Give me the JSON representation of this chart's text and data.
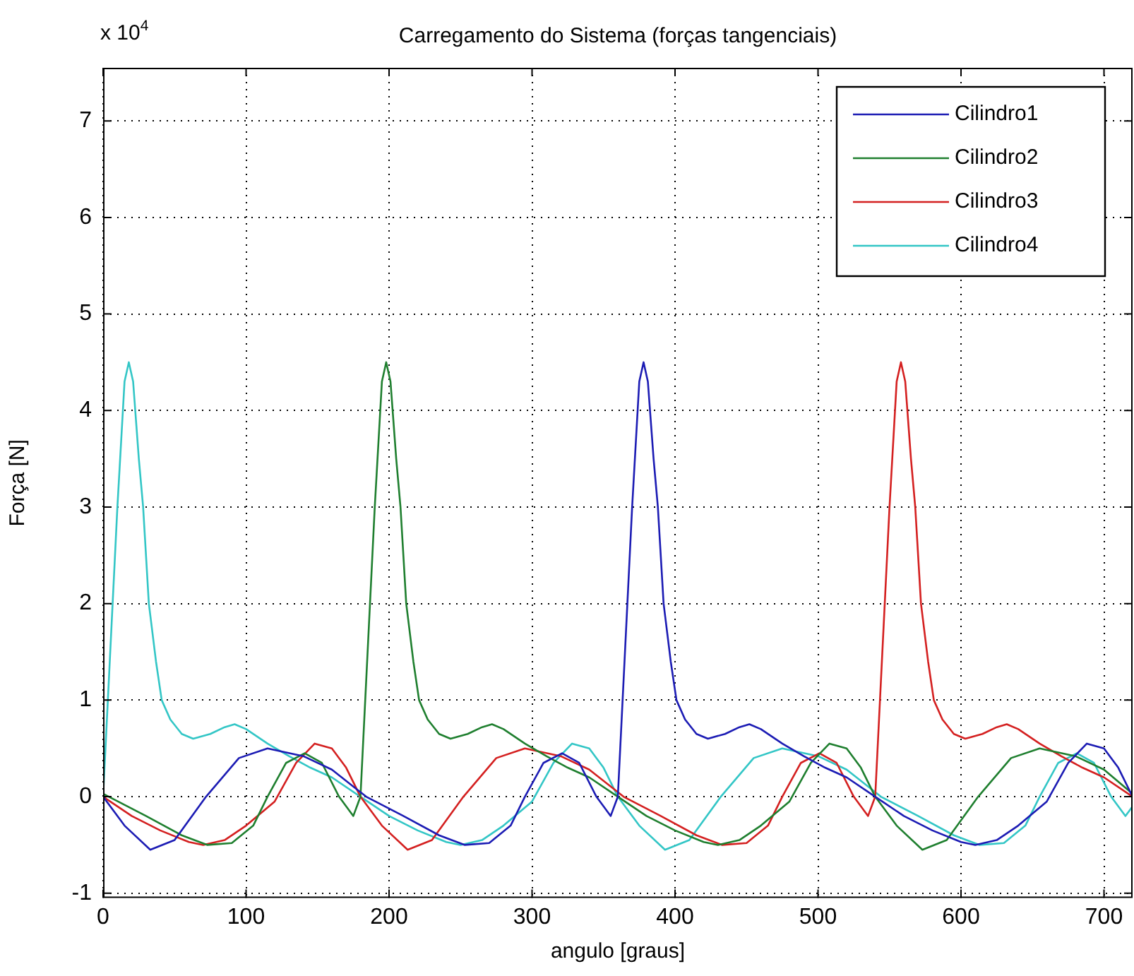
{
  "chart_data": {
    "type": "line",
    "title": "Carregamento do Sistema (forças tangenciais)",
    "xlabel": "angulo [graus]",
    "ylabel": "Força [N]",
    "annotations": [
      "x 10$^{4}$"
    ],
    "xlim": [
      0,
      720
    ],
    "xticks": [
      0,
      100,
      200,
      300,
      400,
      500,
      600,
      700
    ],
    "ylim": [
      -1.05,
      7.55
    ],
    "yticks": [
      -1,
      0,
      1,
      2,
      3,
      4,
      5,
      6,
      7
    ],
    "grid": true,
    "legend": "top right",
    "marker": "none",
    "line_style": "solid",
    "series": [
      {
        "name": "Cilindro1",
        "color": "#1c1cb4",
        "x": [
          0,
          15,
          33,
          50,
          72,
          95,
          115,
          140,
          160,
          184,
          210,
          235,
          253,
          270,
          285,
          295,
          308,
          321,
          333,
          345,
          355,
          360,
          365,
          370,
          375,
          378,
          381,
          385,
          388,
          392,
          397,
          401,
          407,
          415,
          423,
          435,
          445,
          452,
          460,
          475,
          490,
          505,
          520,
          540,
          560,
          580,
          600,
          610,
          625,
          640,
          660,
          675,
          688,
          700,
          710,
          720
        ],
        "values": [
          0,
          -0.3,
          -0.55,
          -0.45,
          0,
          0.4,
          0.5,
          0.42,
          0.28,
          0,
          -0.2,
          -0.4,
          -0.5,
          -0.48,
          -0.3,
          0,
          0.35,
          0.45,
          0.35,
          0,
          -0.2,
          0,
          1.5,
          3.0,
          4.3,
          4.5,
          4.3,
          3.5,
          3.0,
          2.0,
          1.4,
          1.0,
          0.8,
          0.65,
          0.6,
          0.65,
          0.72,
          0.75,
          0.7,
          0.55,
          0.42,
          0.3,
          0.2,
          0,
          -0.2,
          -0.35,
          -0.47,
          -0.5,
          -0.45,
          -0.3,
          -0.05,
          0.35,
          0.55,
          0.5,
          0.3,
          0
        ]
      },
      {
        "name": "Cilindro2",
        "color": "#1f7f2f",
        "x": [
          0,
          4,
          30,
          55,
          73,
          90,
          105,
          115,
          128,
          141,
          153,
          165,
          175,
          180,
          185,
          190,
          195,
          198,
          201,
          205,
          208,
          212,
          217,
          221,
          227,
          235,
          243,
          255,
          265,
          272,
          280,
          295,
          310,
          325,
          340,
          360,
          380,
          400,
          420,
          430,
          445,
          460,
          480,
          495,
          508,
          520,
          530,
          540,
          555,
          573,
          590,
          612,
          635,
          655,
          680,
          700,
          720
        ],
        "values": [
          0.03,
          0,
          -0.2,
          -0.4,
          -0.5,
          -0.48,
          -0.3,
          0,
          0.35,
          0.45,
          0.35,
          0,
          -0.2,
          0,
          1.5,
          3.0,
          4.3,
          4.5,
          4.3,
          3.5,
          3.0,
          2.0,
          1.4,
          1.0,
          0.8,
          0.65,
          0.6,
          0.65,
          0.72,
          0.75,
          0.7,
          0.55,
          0.42,
          0.3,
          0.2,
          0,
          -0.2,
          -0.35,
          -0.47,
          -0.5,
          -0.45,
          -0.3,
          -0.05,
          0.35,
          0.55,
          0.5,
          0.3,
          0,
          -0.3,
          -0.55,
          -0.45,
          0,
          0.4,
          0.5,
          0.42,
          0.28,
          0.03
        ]
      },
      {
        "name": "Cilindro3",
        "color": "#d42020",
        "x": [
          0,
          20,
          40,
          60,
          70,
          85,
          100,
          120,
          135,
          148,
          160,
          170,
          180,
          195,
          213,
          230,
          252,
          275,
          295,
          320,
          340,
          364,
          390,
          415,
          433,
          450,
          465,
          475,
          488,
          501,
          513,
          525,
          535,
          540,
          545,
          550,
          555,
          558,
          561,
          565,
          568,
          572,
          577,
          581,
          587,
          595,
          603,
          615,
          625,
          632,
          640,
          655,
          670,
          685,
          700,
          720
        ],
        "values": [
          0,
          -0.2,
          -0.35,
          -0.47,
          -0.5,
          -0.45,
          -0.3,
          -0.05,
          0.35,
          0.55,
          0.5,
          0.3,
          0,
          -0.3,
          -0.55,
          -0.45,
          0,
          0.4,
          0.5,
          0.42,
          0.28,
          0,
          -0.2,
          -0.4,
          -0.5,
          -0.48,
          -0.3,
          0,
          0.35,
          0.45,
          0.35,
          0,
          -0.2,
          0,
          1.5,
          3.0,
          4.3,
          4.5,
          4.3,
          3.5,
          3.0,
          2.0,
          1.4,
          1.0,
          0.8,
          0.65,
          0.6,
          0.65,
          0.72,
          0.75,
          0.7,
          0.55,
          0.42,
          0.3,
          0.2,
          0
        ]
      },
      {
        "name": "Cilindro4",
        "color": "#33c6c6",
        "x": [
          0,
          5,
          10,
          15,
          18,
          21,
          25,
          28,
          32,
          37,
          41,
          47,
          55,
          63,
          75,
          85,
          92,
          100,
          115,
          130,
          145,
          160,
          180,
          200,
          220,
          240,
          250,
          265,
          280,
          300,
          315,
          328,
          340,
          350,
          360,
          375,
          393,
          410,
          432,
          455,
          475,
          500,
          520,
          544,
          570,
          595,
          613,
          630,
          645,
          655,
          668,
          681,
          693,
          705,
          715,
          720
        ],
        "values": [
          0,
          1.5,
          3.0,
          4.3,
          4.5,
          4.3,
          3.5,
          3.0,
          2.0,
          1.4,
          1.0,
          0.8,
          0.65,
          0.6,
          0.65,
          0.72,
          0.75,
          0.7,
          0.55,
          0.42,
          0.3,
          0.2,
          0,
          -0.2,
          -0.35,
          -0.47,
          -0.5,
          -0.45,
          -0.3,
          -0.05,
          0.35,
          0.55,
          0.5,
          0.3,
          0,
          -0.3,
          -0.55,
          -0.45,
          0,
          0.4,
          0.5,
          0.42,
          0.28,
          0,
          -0.2,
          -0.4,
          -0.5,
          -0.48,
          -0.3,
          0,
          0.35,
          0.45,
          0.35,
          0,
          -0.2,
          -0.1
        ]
      }
    ]
  }
}
